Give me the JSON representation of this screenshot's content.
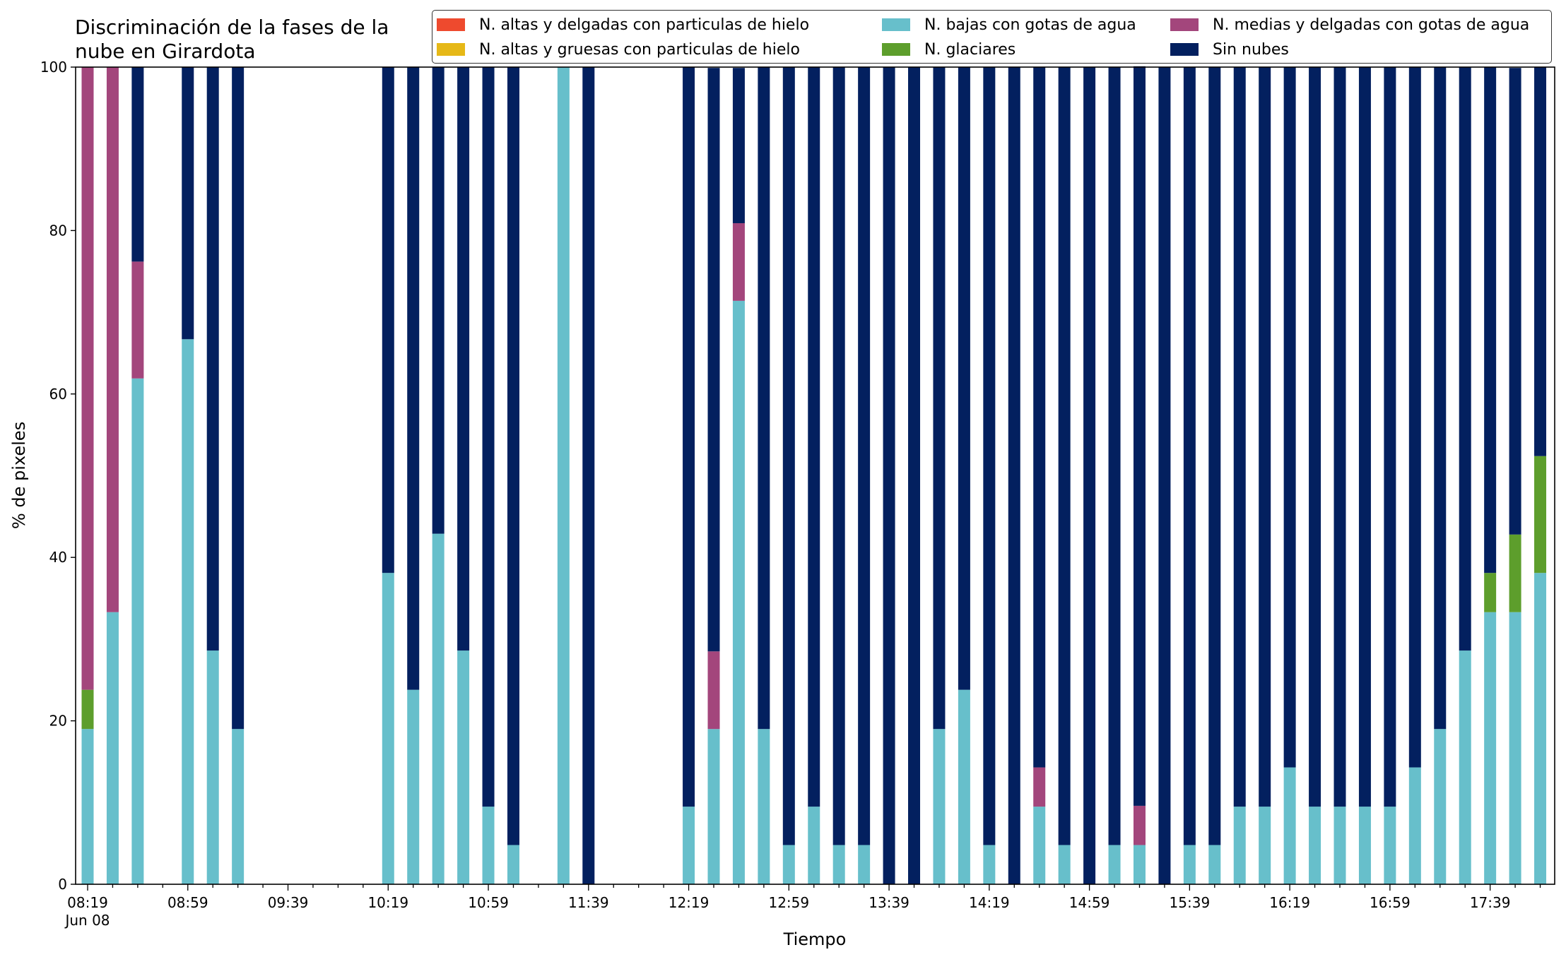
{
  "chart_data": {
    "type": "bar",
    "stacked": true,
    "title": "Discriminación de la fases de la\nnube en Girardota",
    "xlabel": "Tiempo",
    "ylabel": "% de pixeles",
    "ylim": [
      0,
      100
    ],
    "yticks": [
      0,
      20,
      40,
      60,
      80,
      100
    ],
    "x_start": "08:19",
    "x_step_minutes": 10,
    "x_count": 59,
    "xticks": [
      {
        "index": 0,
        "label": "08:19",
        "sublabel": "Jun 08"
      },
      {
        "index": 4,
        "label": "08:59"
      },
      {
        "index": 8,
        "label": "09:39"
      },
      {
        "index": 12,
        "label": "10:19"
      },
      {
        "index": 16,
        "label": "10:59"
      },
      {
        "index": 20,
        "label": "11:39"
      },
      {
        "index": 24,
        "label": "12:19"
      },
      {
        "index": 28,
        "label": "12:59"
      },
      {
        "index": 32,
        "label": "13:39"
      },
      {
        "index": 36,
        "label": "14:19"
      },
      {
        "index": 40,
        "label": "14:59"
      },
      {
        "index": 44,
        "label": "15:39"
      },
      {
        "index": 48,
        "label": "16:19"
      },
      {
        "index": 52,
        "label": "16:59"
      },
      {
        "index": 56,
        "label": "17:39"
      }
    ],
    "legend_position": "top-right",
    "grid": false,
    "series": [
      {
        "name": "N. altas y delgadas con particulas de hielo",
        "color": "#ee4a2e",
        "values": [
          0,
          0,
          0,
          null,
          0,
          0,
          0,
          null,
          null,
          null,
          null,
          null,
          0,
          0,
          0,
          0,
          0,
          0,
          null,
          0,
          0,
          null,
          null,
          null,
          0,
          0,
          0,
          0,
          0,
          0,
          0,
          0,
          0,
          0,
          0,
          0,
          0,
          0,
          0,
          0,
          0,
          0,
          0,
          0,
          0,
          0,
          0,
          0,
          0,
          0,
          0,
          0,
          0,
          0,
          0,
          0,
          0,
          0,
          0
        ]
      },
      {
        "name": "N. altas y gruesas con particulas de hielo",
        "color": "#e6b817",
        "values": [
          0,
          0,
          0,
          null,
          0,
          0,
          0,
          null,
          null,
          null,
          null,
          null,
          0,
          0,
          0,
          0,
          0,
          0,
          null,
          0,
          0,
          null,
          null,
          null,
          0,
          0,
          0,
          0,
          0,
          0,
          0,
          0,
          0,
          0,
          0,
          0,
          0,
          0,
          0,
          0,
          0,
          0,
          0,
          0,
          0,
          0,
          0,
          0,
          0,
          0,
          0,
          0,
          0,
          0,
          0,
          0,
          0,
          0,
          0
        ]
      },
      {
        "name": "N. bajas con gotas de agua",
        "color": "#67bfcb",
        "values": [
          19.0,
          33.3,
          61.9,
          null,
          66.7,
          28.6,
          19.0,
          null,
          null,
          null,
          null,
          null,
          38.1,
          23.8,
          42.9,
          28.6,
          9.5,
          4.8,
          null,
          100,
          0,
          null,
          null,
          null,
          9.5,
          19.0,
          71.4,
          19.0,
          4.8,
          9.5,
          4.8,
          4.8,
          0,
          0,
          19.0,
          23.8,
          4.8,
          0,
          9.5,
          4.8,
          0,
          4.8,
          4.8,
          0,
          4.8,
          4.8,
          9.5,
          9.5,
          14.3,
          9.5,
          9.5,
          9.5,
          9.5,
          14.3,
          19.0,
          28.6,
          33.3,
          33.3,
          38.1
        ]
      },
      {
        "name": "N. glaciares",
        "color": "#5d9e2c",
        "values": [
          4.8,
          0,
          0,
          null,
          0,
          0,
          0,
          null,
          null,
          null,
          null,
          null,
          0,
          0,
          0,
          0,
          0,
          0,
          null,
          0,
          0,
          null,
          null,
          null,
          0,
          0,
          0,
          0,
          0,
          0,
          0,
          0,
          0,
          0,
          0,
          0,
          0,
          0,
          0,
          0,
          0,
          0,
          0,
          0,
          0,
          0,
          0,
          0,
          0,
          0,
          0,
          0,
          0,
          0,
          0,
          0,
          4.8,
          9.5,
          14.3
        ]
      },
      {
        "name": "N. medias y delgadas con gotas de agua",
        "color": "#a3467c",
        "values": [
          76.2,
          66.7,
          14.3,
          null,
          0,
          0,
          0,
          null,
          null,
          null,
          null,
          null,
          0,
          0,
          0,
          0,
          0,
          0,
          null,
          0,
          0,
          null,
          null,
          null,
          0,
          9.5,
          9.5,
          0,
          0,
          0,
          0,
          0,
          0,
          0,
          0,
          0,
          0,
          0,
          4.8,
          0,
          0,
          0,
          4.8,
          0,
          0,
          0,
          0,
          0,
          0,
          0,
          0,
          0,
          0,
          0,
          0,
          0,
          0,
          0,
          0
        ]
      },
      {
        "name": "Sin nubes",
        "color": "#03205f",
        "values": [
          0,
          0,
          23.8,
          null,
          33.3,
          71.4,
          81.0,
          null,
          null,
          null,
          null,
          null,
          61.9,
          76.2,
          57.1,
          71.4,
          90.5,
          95.2,
          null,
          0,
          100,
          null,
          null,
          null,
          90.5,
          71.4,
          19.0,
          81.0,
          95.2,
          90.5,
          95.2,
          95.2,
          100,
          100,
          81.0,
          76.2,
          95.2,
          100,
          85.7,
          95.2,
          100,
          95.2,
          90.5,
          100,
          95.2,
          95.2,
          90.5,
          90.5,
          85.7,
          90.5,
          90.5,
          90.5,
          90.5,
          85.7,
          81.0,
          71.4,
          61.9,
          57.1,
          47.6
        ]
      }
    ]
  }
}
